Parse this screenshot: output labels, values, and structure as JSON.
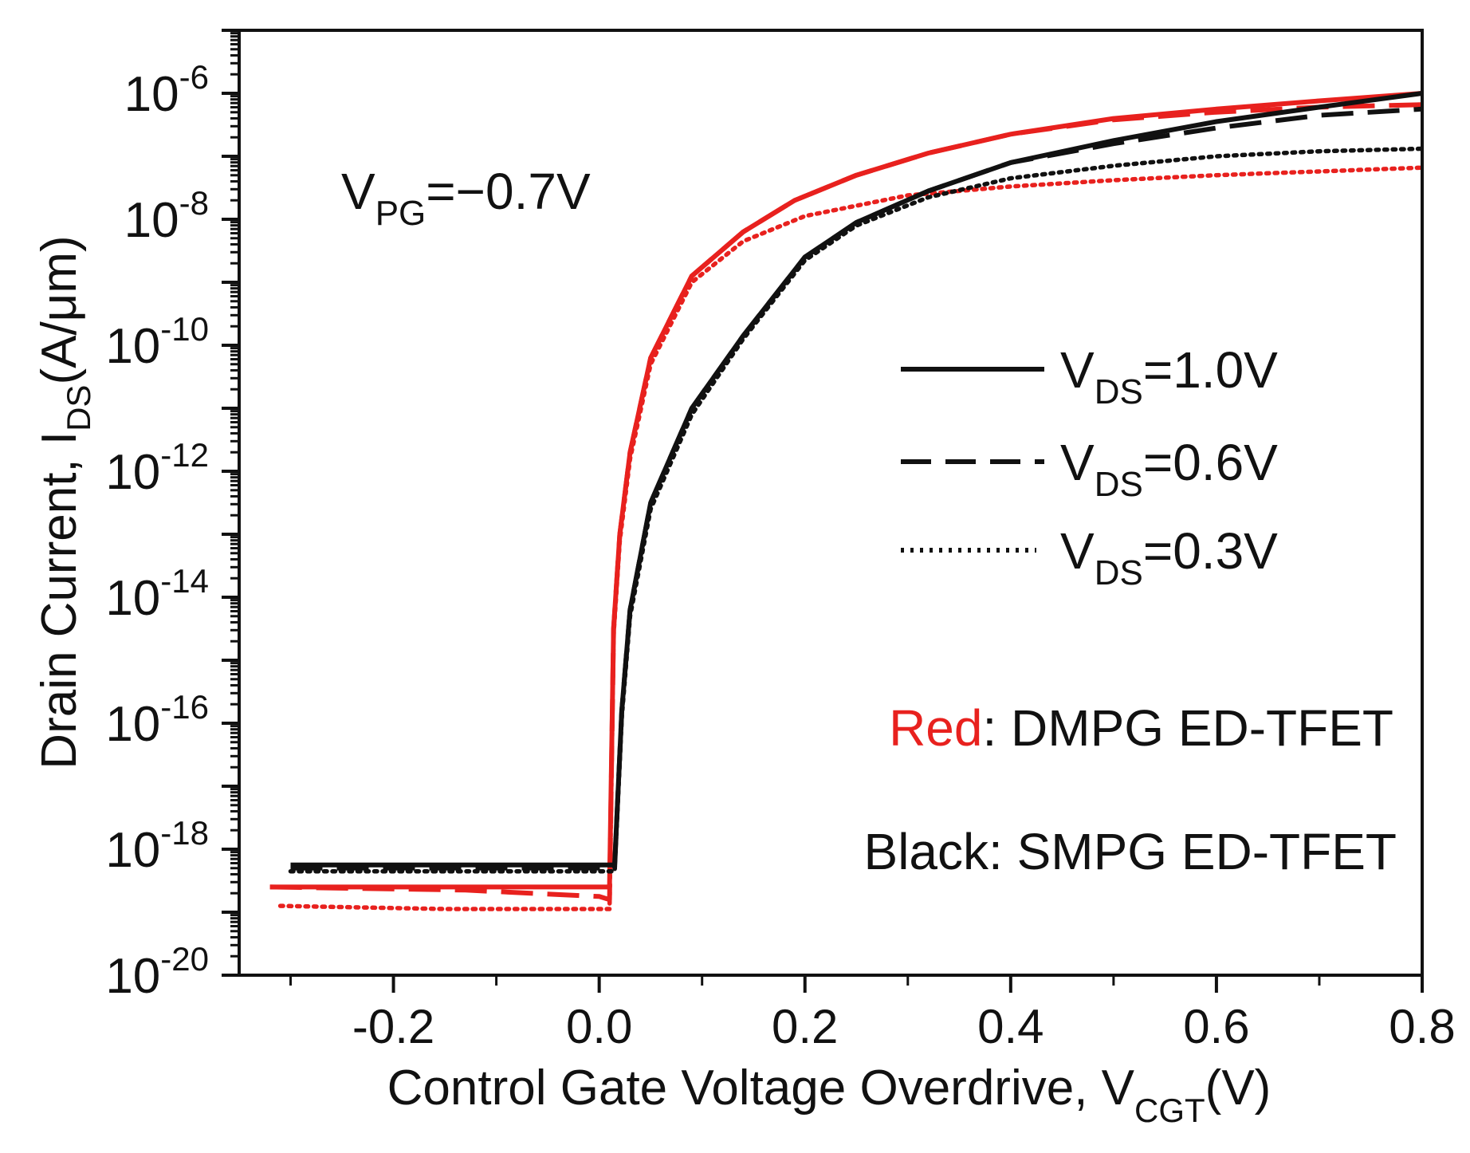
{
  "chart_data": {
    "type": "line",
    "title": "",
    "xlabel": {
      "main": "Control Gate Voltage Overdrive, V",
      "sub": "CGT",
      "tail": "(V)"
    },
    "ylabel": {
      "main": "Drain Current, I",
      "sub": "DS",
      "tail": "(A/μm)"
    },
    "xlim": [
      -0.35,
      0.8
    ],
    "ylim_log10": [
      -20,
      -5
    ],
    "x_ticks": [
      {
        "value": -0.2,
        "label": "-0.2"
      },
      {
        "value": 0.0,
        "label": "0.0"
      },
      {
        "value": 0.2,
        "label": "0.2"
      },
      {
        "value": 0.4,
        "label": "0.4"
      },
      {
        "value": 0.6,
        "label": "0.6"
      },
      {
        "value": 0.8,
        "label": "0.8"
      }
    ],
    "y_ticks": [
      {
        "exp": -6,
        "base": "10",
        "label": "-6"
      },
      {
        "exp": -8,
        "base": "10",
        "label": "-8"
      },
      {
        "exp": -10,
        "base": "10",
        "label": "-10"
      },
      {
        "exp": -12,
        "base": "10",
        "label": "-12"
      },
      {
        "exp": -14,
        "base": "10",
        "label": "-14"
      },
      {
        "exp": -16,
        "base": "10",
        "label": "-16"
      },
      {
        "exp": -18,
        "base": "10",
        "label": "-18"
      },
      {
        "exp": -20,
        "base": "10",
        "label": "-20"
      }
    ],
    "annotations": {
      "vpg": {
        "main": "V",
        "sub": "PG",
        "tail": "=−0.7V"
      },
      "red_note": {
        "key": "Red",
        "rest": ": DMPG ED-TFET"
      },
      "black_note": {
        "text": "Black: SMPG ED-TFET"
      }
    },
    "legend": {
      "position": "right",
      "entries": [
        {
          "style": "solid",
          "main": "V",
          "sub": "DS",
          "tail": "=1.0V"
        },
        {
          "style": "dashed",
          "main": "V",
          "sub": "DS",
          "tail": "=0.6V"
        },
        {
          "style": "dotted",
          "main": "V",
          "sub": "DS",
          "tail": "=0.3V"
        }
      ]
    },
    "colors": {
      "red": "#e8211e",
      "black": "#111111"
    },
    "series": [
      {
        "name": "DMPG VDS=1.0V",
        "color": "red",
        "style": "solid",
        "x": [
          -0.32,
          0.01,
          0.014,
          0.02,
          0.03,
          0.05,
          0.09,
          0.14,
          0.19,
          0.25,
          0.32,
          0.4,
          0.5,
          0.6,
          0.7,
          0.8
        ],
        "log10": [
          -18.6,
          -18.6,
          -14.5,
          -13,
          -11.7,
          -10.2,
          -8.9,
          -8.2,
          -7.7,
          -7.3,
          -6.95,
          -6.65,
          -6.4,
          -6.25,
          -6.12,
          -6.0
        ]
      },
      {
        "name": "DMPG VDS=0.6V",
        "color": "red",
        "style": "dashed",
        "x": [
          -0.32,
          -0.13,
          0.0,
          0.01,
          0.014,
          0.02,
          0.03,
          0.05,
          0.09,
          0.14,
          0.19,
          0.25,
          0.32,
          0.4,
          0.5,
          0.6,
          0.7,
          0.8
        ],
        "log10": [
          -18.6,
          -18.65,
          -18.75,
          -18.8,
          -14.5,
          -13,
          -11.7,
          -10.2,
          -8.9,
          -8.2,
          -7.7,
          -7.3,
          -6.95,
          -6.65,
          -6.42,
          -6.3,
          -6.22,
          -6.18
        ]
      },
      {
        "name": "DMPG VDS=0.3V",
        "color": "red",
        "style": "dotted",
        "x": [
          -0.31,
          -0.15,
          0.0,
          0.01,
          0.014,
          0.02,
          0.03,
          0.05,
          0.09,
          0.14,
          0.2,
          0.3,
          0.4,
          0.5,
          0.6,
          0.7,
          0.8
        ],
        "log10": [
          -18.9,
          -18.95,
          -18.95,
          -18.95,
          -14.6,
          -13.1,
          -11.8,
          -10.3,
          -9.0,
          -8.35,
          -7.95,
          -7.62,
          -7.48,
          -7.38,
          -7.3,
          -7.24,
          -7.18
        ]
      },
      {
        "name": "SMPG VDS=1.0V",
        "color": "black",
        "style": "solid",
        "x": [
          -0.3,
          0.015,
          0.018,
          0.022,
          0.03,
          0.05,
          0.09,
          0.14,
          0.2,
          0.25,
          0.32,
          0.4,
          0.5,
          0.6,
          0.7,
          0.8
        ],
        "log10": [
          -18.25,
          -18.25,
          -17.2,
          -15.8,
          -14.2,
          -12.5,
          -11.0,
          -9.85,
          -8.6,
          -8.05,
          -7.55,
          -7.1,
          -6.75,
          -6.45,
          -6.22,
          -6.0
        ]
      },
      {
        "name": "SMPG VDS=0.6V",
        "color": "black",
        "style": "dashed",
        "x": [
          -0.3,
          0.015,
          0.018,
          0.022,
          0.03,
          0.05,
          0.09,
          0.14,
          0.2,
          0.25,
          0.32,
          0.4,
          0.5,
          0.6,
          0.7,
          0.8
        ],
        "log10": [
          -18.3,
          -18.3,
          -17.2,
          -15.8,
          -14.2,
          -12.5,
          -11.0,
          -9.85,
          -8.6,
          -8.05,
          -7.55,
          -7.1,
          -6.8,
          -6.55,
          -6.35,
          -6.25
        ]
      },
      {
        "name": "SMPG VDS=0.3V",
        "color": "black",
        "style": "dotted",
        "x": [
          -0.3,
          0.015,
          0.018,
          0.022,
          0.03,
          0.05,
          0.09,
          0.14,
          0.2,
          0.25,
          0.32,
          0.4,
          0.5,
          0.6,
          0.7,
          0.8
        ],
        "log10": [
          -18.35,
          -18.35,
          -17.3,
          -15.9,
          -14.3,
          -12.6,
          -11.1,
          -9.9,
          -8.65,
          -8.1,
          -7.65,
          -7.35,
          -7.15,
          -7.0,
          -6.92,
          -6.88
        ]
      }
    ]
  }
}
